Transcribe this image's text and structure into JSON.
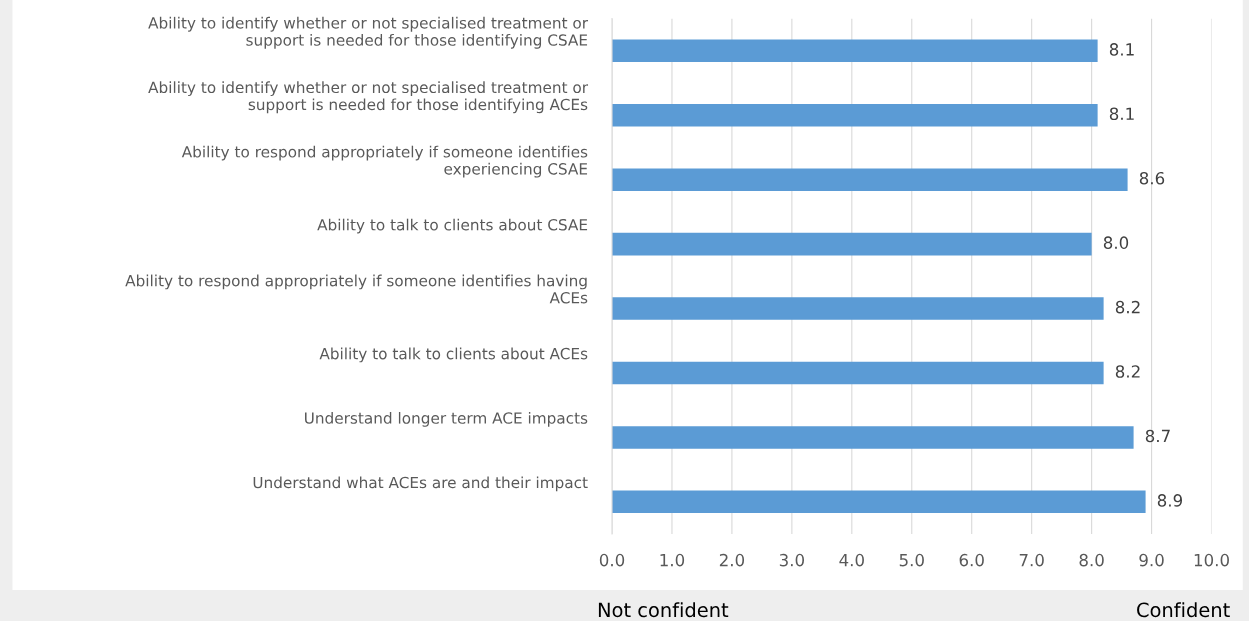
{
  "chart_data": {
    "type": "bar",
    "orientation": "horizontal",
    "categories": [
      "Ability to identify whether or not specialised treatment or support is needed for those identifying CSAE",
      "Ability to identify whether or not specialised treatment or support is needed for those identifying ACEs",
      "Ability to respond appropriately if someone identifies experiencing CSAE",
      "Ability to talk to clients about CSAE",
      "Ability to respond appropriately if someone identifies having ACEs",
      "Ability to talk to clients about ACEs",
      "Understand longer term ACE impacts",
      "Understand what ACEs are and their impact"
    ],
    "values": [
      8.1,
      8.1,
      8.6,
      8.0,
      8.2,
      8.2,
      8.7,
      8.9
    ],
    "color": "#5b9bd5",
    "value_labels": [
      "8.1",
      "8.1",
      "8.6",
      "8.0",
      "8.2",
      "8.2",
      "8.7",
      "8.9"
    ],
    "xlim": [
      0,
      10
    ],
    "xticks": [
      {
        "value": 0,
        "label": "0.0"
      },
      {
        "value": 1,
        "label": "1.0"
      },
      {
        "value": 2,
        "label": "2.0"
      },
      {
        "value": 3,
        "label": "3.0"
      },
      {
        "value": 4,
        "label": "4.0"
      },
      {
        "value": 5,
        "label": "5.0"
      },
      {
        "value": 6,
        "label": "6.0"
      },
      {
        "value": 7,
        "label": "7.0"
      },
      {
        "value": 8,
        "label": "8.0"
      },
      {
        "value": 9,
        "label": "9.0"
      },
      {
        "value": 10,
        "label": "10.0"
      }
    ],
    "grid": "x",
    "annotations": [
      "Not confident",
      "Confident"
    ]
  }
}
